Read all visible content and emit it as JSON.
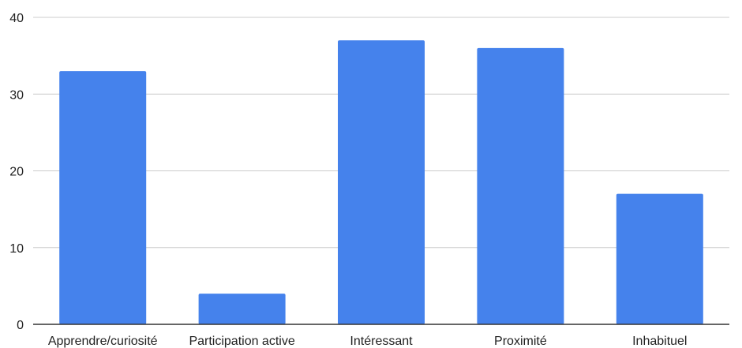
{
  "chart_data": {
    "type": "bar",
    "title": "",
    "xlabel": "",
    "ylabel": "",
    "categories": [
      "Apprendre/curiosité",
      "Participation active",
      "Intéressant",
      "Proximité",
      "Inhabituel"
    ],
    "values": [
      33,
      4,
      37,
      36,
      17
    ],
    "ylim": [
      0,
      40
    ],
    "yticks": [
      0,
      10,
      20,
      30,
      40
    ],
    "grid": true,
    "legend": "none",
    "bar_color": "#4582EC",
    "grid_color": "#CCCCCC",
    "axis_color": "#333333"
  }
}
